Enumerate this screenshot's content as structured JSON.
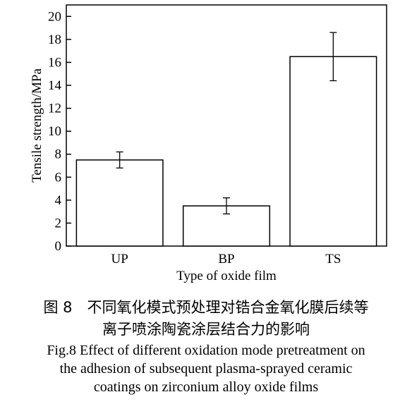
{
  "chart_data": {
    "type": "bar",
    "categories": [
      "UP",
      "BP",
      "TS"
    ],
    "values": [
      7.5,
      3.5,
      16.5
    ],
    "errors": [
      0.7,
      0.7,
      2.1
    ],
    "xlabel": "Type of oxide film",
    "ylabel": "Tensile strength/MPa",
    "ylim": [
      0,
      21
    ],
    "yticks": [
      0,
      2,
      4,
      6,
      8,
      10,
      12,
      14,
      16,
      18,
      20
    ],
    "grid": false,
    "bar_fill": "#ffffff",
    "stroke_color": "#000000"
  },
  "caption": {
    "cn_line1": "图 8　不同氧化模式预处理对锆合金氧化膜后续等",
    "cn_line2": "离子喷涂陶瓷涂层结合力的影响",
    "en_line1": "Fig.8 Effect of different oxidation mode pretreatment on",
    "en_line2": "the adhesion of subsequent plasma-sprayed ceramic",
    "en_line3": "coatings on zirconium alloy oxide films"
  }
}
